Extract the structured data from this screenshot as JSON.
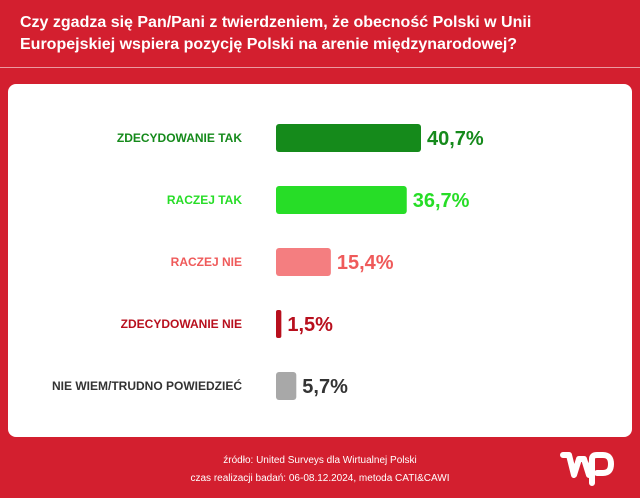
{
  "title": "Czy zgadza się Pan/Pani z twierdzeniem, że obecność Polski w Unii Europejskiej wspiera pozycję Polski na arenie międzynarodowej?",
  "chart_data": {
    "type": "bar",
    "orientation": "horizontal",
    "title": "Czy zgadza się Pan/Pani z twierdzeniem, że obecność Polski w Unii Europejskiej wspiera pozycję Polski na arenie międzynarodowej?",
    "categories": [
      "ZDECYDOWANIE TAK",
      "RACZEJ TAK",
      "RACZEJ NIE",
      "ZDECYDOWANIE NIE",
      "NIE WIEM/TRUDNO POWIEDZIEĆ"
    ],
    "values": [
      40.7,
      36.7,
      15.4,
      1.5,
      5.7
    ],
    "value_labels": [
      "40,7%",
      "36,7%",
      "15,4%",
      "1,5%",
      "5,7%"
    ],
    "colors": [
      "#158a1b",
      "#27dd27",
      "#f47e80",
      "#b80f1d",
      "#a8a8a8"
    ],
    "label_colors": [
      "#158a1b",
      "#27dd27",
      "#ef5a5a",
      "#b80f1d",
      "#333333"
    ],
    "unit": "%",
    "xlim": [
      0,
      40.7
    ],
    "grid": false,
    "xlabel": "",
    "ylabel": ""
  },
  "footer": {
    "source": "źródło: United Surveys dla Wirtualnej Polski",
    "method": "czas realizacji badań: 06-08.12.2024, metoda CATI&CAWI"
  },
  "logo": {
    "text": "WP",
    "icon": "wp-logo-icon",
    "color": "#ffffff"
  }
}
